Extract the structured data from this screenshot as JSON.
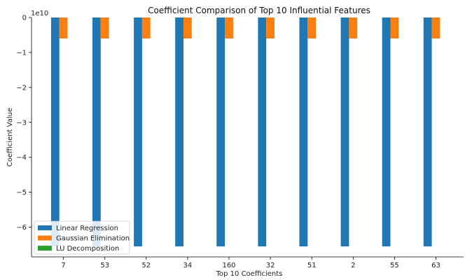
{
  "chart_data": {
    "type": "bar",
    "title": "Coefficient Comparison of Top 10 Influential Features",
    "xlabel": "Top 10 Coefficients",
    "ylabel": "Coefficient Value",
    "offset_label": "1e10",
    "categories": [
      "7",
      "53",
      "52",
      "34",
      "160",
      "32",
      "51",
      "2",
      "55",
      "63"
    ],
    "ylim": [
      -6.85,
      0
    ],
    "yticks": [
      0,
      -1,
      -2,
      -3,
      -4,
      -5,
      -6
    ],
    "ytick_labels": [
      "0",
      "−1",
      "−2",
      "−3",
      "−4",
      "−5",
      "−6"
    ],
    "series": [
      {
        "name": "Linear Regression",
        "color": "#1f77b4",
        "values": [
          -6.55,
          -6.55,
          -6.55,
          -6.55,
          -6.55,
          -6.55,
          -6.55,
          -6.55,
          -6.55,
          -6.55
        ]
      },
      {
        "name": "Gaussian Elimination",
        "color": "#ff7f0e",
        "values": [
          -0.6,
          -0.6,
          -0.6,
          -0.6,
          -0.6,
          -0.6,
          -0.6,
          -0.6,
          -0.6,
          -0.6
        ]
      },
      {
        "name": "LU Decomposition",
        "color": "#2ca02c",
        "values": [
          0,
          0,
          0,
          0,
          0,
          0,
          0,
          0,
          0,
          0
        ]
      }
    ],
    "grid": false,
    "legend_position": "lower-left"
  }
}
